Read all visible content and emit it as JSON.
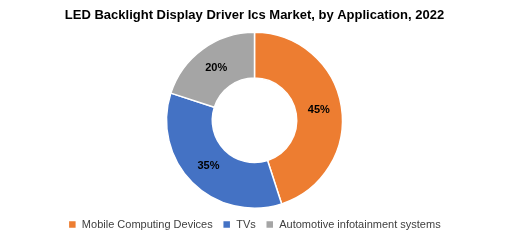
{
  "chart_data": {
    "type": "doughnut",
    "title": "LED Backlight Display Driver Ics Market, by Application, 2022",
    "categories": [
      "Mobile Computing Devices",
      "TVs",
      "Automotive infotainment systems"
    ],
    "values": [
      45,
      35,
      20
    ],
    "value_labels": [
      "45%",
      "35%",
      "20%"
    ],
    "colors": [
      "#ed7d31",
      "#4472c4",
      "#a5a5a5"
    ],
    "data_labels": true,
    "legend": "bottom"
  }
}
